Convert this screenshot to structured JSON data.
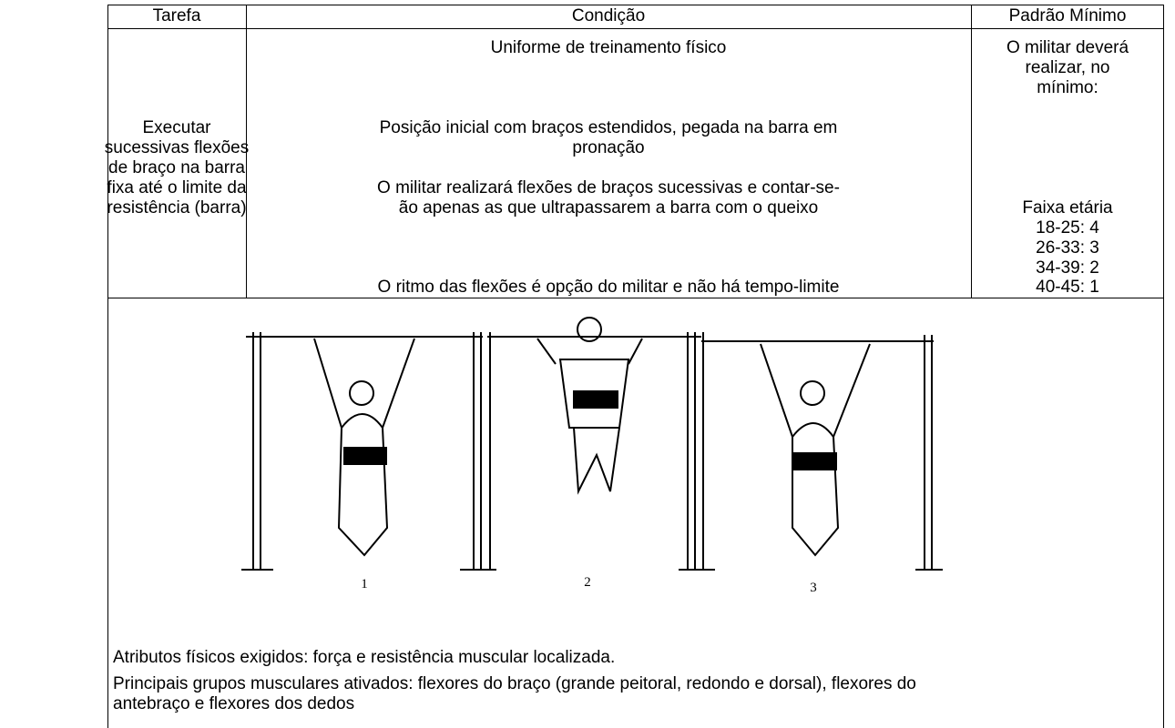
{
  "table": {
    "header": [
      "Tarefa",
      "Condição",
      "Padrão Mínimo"
    ],
    "task_lines": [
      "Executar",
      "sucessivas flexões",
      "de braço na barra",
      "fixa até o limite da",
      "resistência (barra)"
    ],
    "condition_lines": [
      "Uniforme de treinamento físico",
      "Posição inicial com braços estendidos, pegada na barra em",
      "pronação",
      "O militar realizará flexões de braços sucessivas e contar-se-",
      "ão apenas as que ultrapassarem a barra com o queixo",
      "O ritmo das flexões é opção do militar e não há tempo-limite"
    ],
    "standard_lines": [
      "O militar deverá",
      "realizar, no",
      "mínimo:",
      "Faixa etária",
      "18-25: 4",
      "26-33: 3",
      "34-39: 2",
      "40-45: 1"
    ]
  },
  "figure": {
    "labels": [
      "1",
      "2",
      "3"
    ]
  },
  "notes": {
    "attributes": "Atributos físicos exigidos: força e resistência muscular localizada.",
    "muscles_lines": [
      "Principais grupos musculares ativados: flexores do braço (grande peitoral, redondo e dorsal), flexores do",
      "antebraço e flexores dos dedos"
    ]
  }
}
